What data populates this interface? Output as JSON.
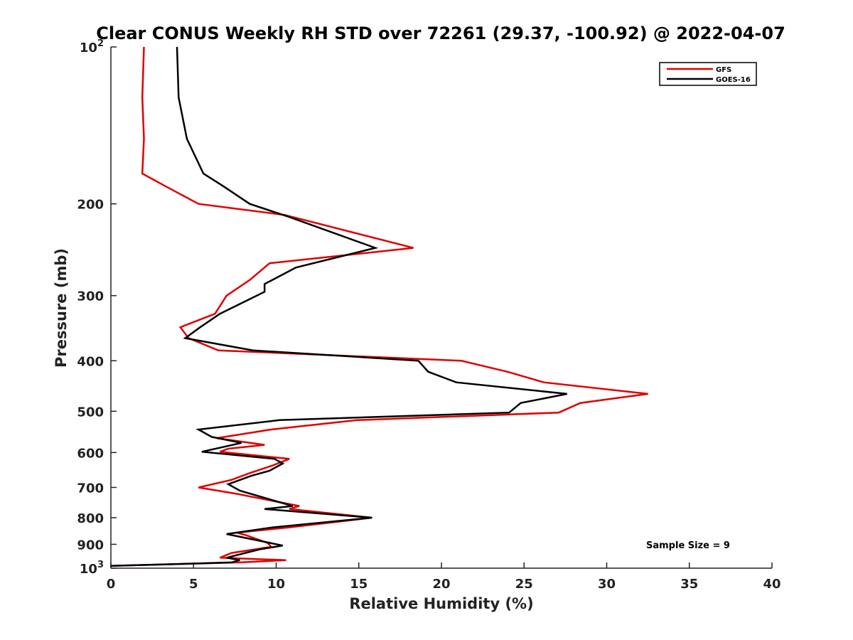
{
  "chart_data": {
    "type": "line",
    "title": "Clear CONUS Weekly RH STD over 72261 (29.37, -100.92) @ 2022-04-07",
    "xlabel": "Relative Humidity (%)",
    "ylabel": "Pressure (mb)",
    "xlim": [
      0,
      40
    ],
    "ylim": [
      100,
      1000
    ],
    "yscale": "log",
    "y_reversed": true,
    "grid": false,
    "legend_position": "top-right",
    "x_ticks": [
      "0",
      "5",
      "10",
      "15",
      "20",
      "25",
      "30",
      "35",
      "40"
    ],
    "y_ticks": [
      {
        "value": 100,
        "base": "10",
        "exp": "2"
      },
      {
        "value": 200,
        "label": "200"
      },
      {
        "value": 300,
        "label": "300"
      },
      {
        "value": 400,
        "label": "400"
      },
      {
        "value": 500,
        "label": "500"
      },
      {
        "value": 600,
        "label": "600"
      },
      {
        "value": 700,
        "label": "700"
      },
      {
        "value": 800,
        "label": "800"
      },
      {
        "value": 900,
        "label": "900"
      },
      {
        "value": 1000,
        "base": "10",
        "exp": "3"
      }
    ],
    "annotation": "Sample Size = 9",
    "series": [
      {
        "name": "GFS",
        "color": "#e00000",
        "points": [
          [
            2.0,
            100
          ],
          [
            1.9,
            125
          ],
          [
            2.0,
            150
          ],
          [
            1.9,
            175
          ],
          [
            3.3,
            185
          ],
          [
            5.3,
            200
          ],
          [
            10.5,
            210
          ],
          [
            18.3,
            243
          ],
          [
            9.6,
            260
          ],
          [
            8.4,
            280
          ],
          [
            7.0,
            300
          ],
          [
            6.3,
            325
          ],
          [
            4.2,
            345
          ],
          [
            4.7,
            362
          ],
          [
            6.5,
            382
          ],
          [
            21.2,
            400
          ],
          [
            24.0,
            420
          ],
          [
            26.2,
            440
          ],
          [
            32.5,
            463
          ],
          [
            28.4,
            482
          ],
          [
            27.1,
            503
          ],
          [
            14.9,
            520
          ],
          [
            9.7,
            542
          ],
          [
            6.4,
            563
          ],
          [
            9.3,
            580
          ],
          [
            7.1,
            590
          ],
          [
            6.6,
            598
          ],
          [
            10.8,
            617
          ],
          [
            9.8,
            635
          ],
          [
            8.4,
            657
          ],
          [
            7.3,
            677
          ],
          [
            5.3,
            700
          ],
          [
            7.6,
            720
          ],
          [
            11.4,
            760
          ],
          [
            10.8,
            770
          ],
          [
            15.8,
            800
          ],
          [
            10.8,
            835
          ],
          [
            7.6,
            855
          ],
          [
            8.2,
            865
          ],
          [
            9.5,
            895
          ],
          [
            9.7,
            910
          ],
          [
            7.3,
            935
          ],
          [
            6.6,
            955
          ],
          [
            10.6,
            965
          ],
          [
            7.8,
            975
          ],
          [
            0.0,
            990
          ]
        ]
      },
      {
        "name": "GOES-16",
        "color": "#000000",
        "points": [
          [
            4.0,
            100
          ],
          [
            4.1,
            125
          ],
          [
            4.6,
            150
          ],
          [
            5.6,
            175
          ],
          [
            6.8,
            185
          ],
          [
            8.4,
            200
          ],
          [
            10.8,
            212
          ],
          [
            16.0,
            243
          ],
          [
            11.2,
            265
          ],
          [
            9.3,
            285
          ],
          [
            9.3,
            295
          ],
          [
            6.6,
            325
          ],
          [
            5.4,
            345
          ],
          [
            4.5,
            362
          ],
          [
            8.6,
            382
          ],
          [
            18.6,
            400
          ],
          [
            19.2,
            420
          ],
          [
            20.9,
            440
          ],
          [
            27.6,
            463
          ],
          [
            24.8,
            482
          ],
          [
            24.1,
            503
          ],
          [
            10.2,
            520
          ],
          [
            5.3,
            542
          ],
          [
            6.1,
            560
          ],
          [
            7.9,
            575
          ],
          [
            5.5,
            598
          ],
          [
            9.9,
            617
          ],
          [
            10.4,
            630
          ],
          [
            9.6,
            650
          ],
          [
            8.5,
            665
          ],
          [
            7.1,
            690
          ],
          [
            7.8,
            710
          ],
          [
            11.0,
            760
          ],
          [
            9.3,
            770
          ],
          [
            15.8,
            800
          ],
          [
            9.8,
            835
          ],
          [
            7.0,
            860
          ],
          [
            10.4,
            905
          ],
          [
            9.0,
            920
          ],
          [
            7.0,
            955
          ],
          [
            7.8,
            965
          ],
          [
            7.3,
            975
          ],
          [
            0.0,
            990
          ]
        ]
      }
    ]
  }
}
